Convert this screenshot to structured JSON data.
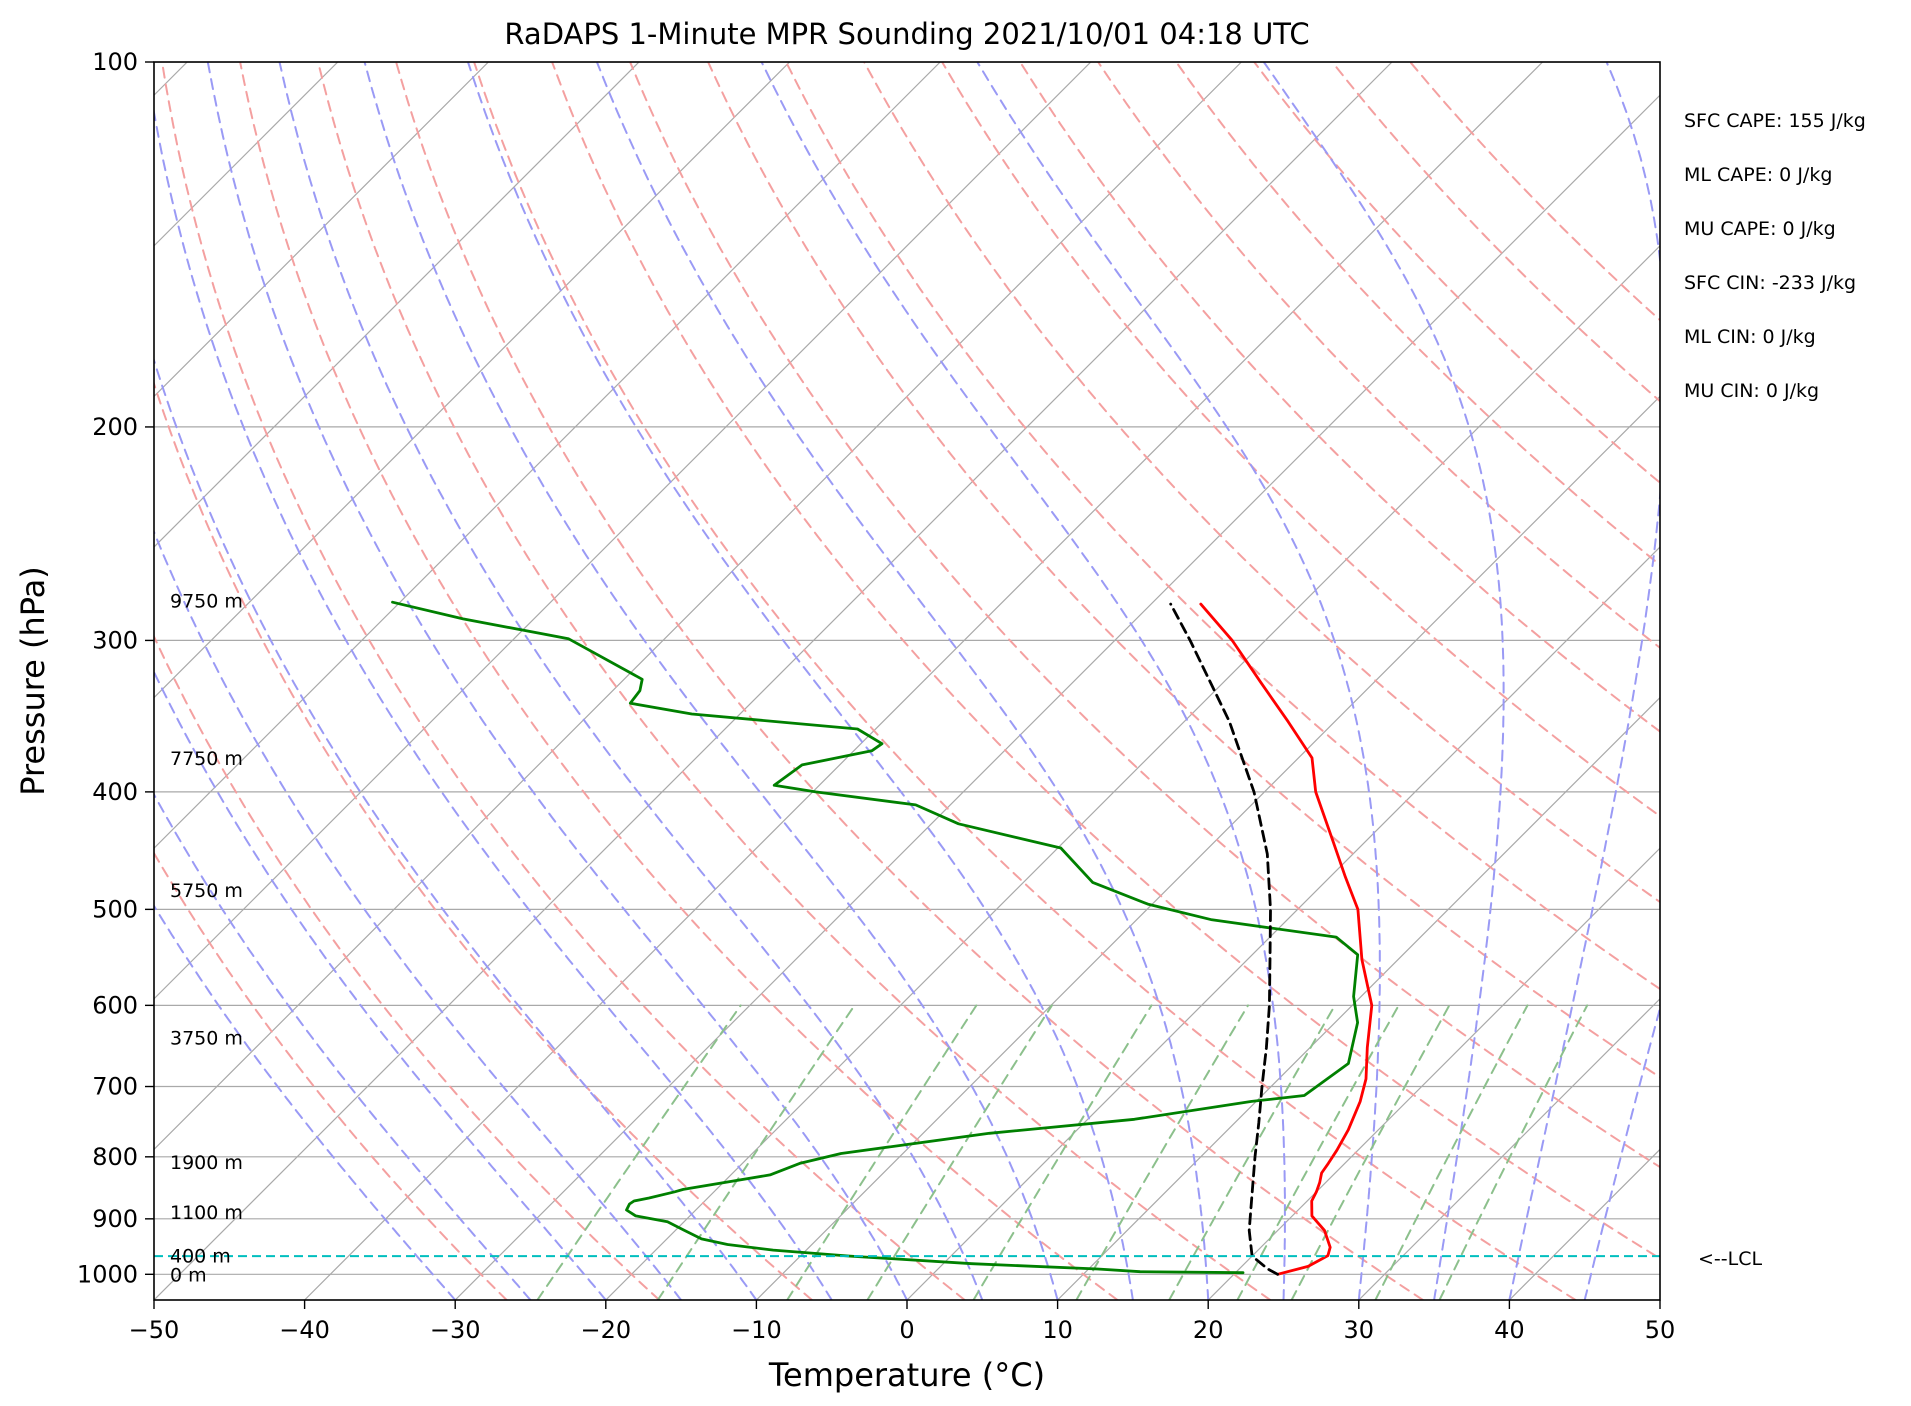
{
  "chart_data": {
    "type": "line",
    "title": "RaDAPS 1-Minute MPR Sounding 2021/10/01 04:18 UTC",
    "xlabel": "Temperature (°C)",
    "ylabel": "Pressure (hPa)",
    "xlim": [
      -50,
      50
    ],
    "ylim": [
      1050,
      100
    ],
    "y_scale": "log",
    "skew": "skew-T (isotherms tilted 45°)",
    "x_ticks": [
      "−50",
      "−40",
      "−30",
      "−20",
      "−10",
      "0",
      "10",
      "20",
      "30",
      "40",
      "50"
    ],
    "y_ticks": [
      "100",
      "200",
      "300",
      "400",
      "500",
      "600",
      "700",
      "800",
      "900",
      "1000"
    ],
    "grid": true,
    "background_lines": {
      "isotherms": "gray solid",
      "dry_adiabats": "red dashed",
      "moist_adiabats": "blue dashed",
      "mixing_ratio_lines": "green dashed"
    },
    "series": [
      {
        "name": "",
        "color": "#ff0000",
        "style": "solid",
        "points": [
          {
            "p": 1000,
            "t": 22.9
          },
          {
            "p": 985,
            "t": 24.4
          },
          {
            "p": 965,
            "t": 25.0
          },
          {
            "p": 950,
            "t": 24.6
          },
          {
            "p": 920,
            "t": 23.1
          },
          {
            "p": 895,
            "t": 21.3
          },
          {
            "p": 870,
            "t": 20.3
          },
          {
            "p": 855,
            "t": 20.0
          },
          {
            "p": 840,
            "t": 19.6
          },
          {
            "p": 825,
            "t": 19.1
          },
          {
            "p": 810,
            "t": 18.9
          },
          {
            "p": 790,
            "t": 18.6
          },
          {
            "p": 760,
            "t": 18.0
          },
          {
            "p": 720,
            "t": 16.9
          },
          {
            "p": 690,
            "t": 15.8
          },
          {
            "p": 650,
            "t": 13.8
          },
          {
            "p": 600,
            "t": 11.3
          },
          {
            "p": 550,
            "t": 7.6
          },
          {
            "p": 500,
            "t": 4.0
          },
          {
            "p": 470,
            "t": 1.0
          },
          {
            "p": 440,
            "t": -2.1
          },
          {
            "p": 400,
            "t": -6.6
          },
          {
            "p": 375,
            "t": -9.1
          },
          {
            "p": 350,
            "t": -13.1
          },
          {
            "p": 325,
            "t": -17.5
          },
          {
            "p": 300,
            "t": -22.2
          },
          {
            "p": 280,
            "t": -26.7
          }
        ]
      },
      {
        "name": "",
        "color": "#008000",
        "style": "solid",
        "points": [
          {
            "p": 997,
            "t": 20.5
          },
          {
            "p": 995,
            "t": 13.6
          },
          {
            "p": 990,
            "t": 10.6
          },
          {
            "p": 980,
            "t": 1.9
          },
          {
            "p": 966,
            "t": -6.7
          },
          {
            "p": 955,
            "t": -12.2
          },
          {
            "p": 945,
            "t": -15.6
          },
          {
            "p": 935,
            "t": -17.7
          },
          {
            "p": 920,
            "t": -19.4
          },
          {
            "p": 905,
            "t": -21.1
          },
          {
            "p": 895,
            "t": -23.6
          },
          {
            "p": 885,
            "t": -24.6
          },
          {
            "p": 875,
            "t": -24.8
          },
          {
            "p": 870,
            "t": -24.7
          },
          {
            "p": 865,
            "t": -23.9
          },
          {
            "p": 855,
            "t": -22.6
          },
          {
            "p": 851,
            "t": -22.2
          },
          {
            "p": 828,
            "t": -17.4
          },
          {
            "p": 810,
            "t": -16.2
          },
          {
            "p": 795,
            "t": -14.1
          },
          {
            "p": 765,
            "t": -5.6
          },
          {
            "p": 745,
            "t": 3.1
          },
          {
            "p": 720,
            "t": 9.7
          },
          {
            "p": 712,
            "t": 12.8
          },
          {
            "p": 670,
            "t": 13.6
          },
          {
            "p": 620,
            "t": 11.5
          },
          {
            "p": 590,
            "t": 9.5
          },
          {
            "p": 545,
            "t": 7.0
          },
          {
            "p": 527,
            "t": 4.4
          },
          {
            "p": 510,
            "t": -5.0
          },
          {
            "p": 495,
            "t": -10.3
          },
          {
            "p": 475,
            "t": -15.4
          },
          {
            "p": 445,
            "t": -19.8
          },
          {
            "p": 425,
            "t": -28.2
          },
          {
            "p": 410,
            "t": -32.3
          },
          {
            "p": 400,
            "t": -39.8
          },
          {
            "p": 395,
            "t": -43.0
          },
          {
            "p": 380,
            "t": -42.5
          },
          {
            "p": 370,
            "t": -38.8
          },
          {
            "p": 365,
            "t": -38.6
          },
          {
            "p": 355,
            "t": -41.2
          },
          {
            "p": 345,
            "t": -53.2
          },
          {
            "p": 338,
            "t": -58.0
          },
          {
            "p": 330,
            "t": -58.2
          },
          {
            "p": 323,
            "t": -58.8
          },
          {
            "p": 299,
            "t": -66.4
          },
          {
            "p": 288,
            "t": -74.7
          },
          {
            "p": 279,
            "t": -80.5
          }
        ]
      },
      {
        "name": "",
        "color": "#000000",
        "style": "dashed",
        "points": [
          {
            "p": 1000,
            "t": 22.9
          },
          {
            "p": 990,
            "t": 21.9
          },
          {
            "p": 966,
            "t": 20.0
          },
          {
            "p": 920,
            "t": 18.1
          },
          {
            "p": 870,
            "t": 16.3
          },
          {
            "p": 800,
            "t": 13.6
          },
          {
            "p": 750,
            "t": 11.6
          },
          {
            "p": 700,
            "t": 9.4
          },
          {
            "p": 650,
            "t": 7.1
          },
          {
            "p": 600,
            "t": 4.5
          },
          {
            "p": 550,
            "t": 1.5
          },
          {
            "p": 500,
            "t": -1.8
          },
          {
            "p": 450,
            "t": -5.7
          },
          {
            "p": 400,
            "t": -10.7
          },
          {
            "p": 350,
            "t": -17.0
          },
          {
            "p": 300,
            "t": -25.0
          },
          {
            "p": 280,
            "t": -28.7
          }
        ]
      }
    ],
    "lcl": {
      "pressure_hPa": 966,
      "label": "<--LCL"
    },
    "height_labels": [
      {
        "p": 1000,
        "text": "0 m"
      },
      {
        "p": 965,
        "text": "400 m"
      },
      {
        "p": 888,
        "text": "1100 m"
      },
      {
        "p": 808,
        "text": "1900 m"
      },
      {
        "p": 638,
        "text": "3750 m"
      },
      {
        "p": 482,
        "text": "5750 m"
      },
      {
        "p": 375,
        "text": "7750 m"
      },
      {
        "p": 278,
        "text": "9750 m"
      }
    ],
    "annotations": [
      "SFC CAPE: 155 J/kg",
      "ML CAPE: 0 J/kg",
      "MU CAPE: 0 J/kg",
      "SFC CIN: -233 J/kg",
      "ML CIN: 0 J/kg",
      "MU CIN: 0 J/kg"
    ]
  },
  "colors": {
    "temperature": "#ff0000",
    "dewpoint": "#008000",
    "parcel": "#000000",
    "lcl_line": "#00bfbf",
    "isotherm": "#a9a9a9",
    "dry_adiabat": "#f4a0a0",
    "moist_adiabat": "#9a9af5",
    "mixing_ratio": "#8cc08c"
  }
}
